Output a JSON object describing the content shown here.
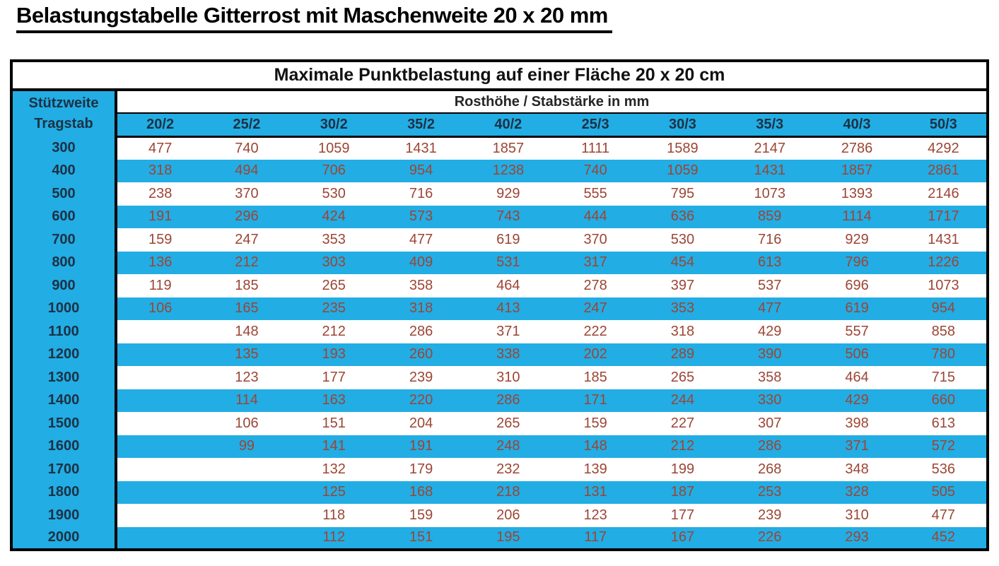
{
  "page": {
    "title": "Belastungstabelle Gitterrost mit Maschenweite 20 x 20 mm"
  },
  "table": {
    "main_header": "Maximale Punktbelastung auf einer Fläche 20 x 20 cm",
    "corner": {
      "line1": "Stützweite",
      "line2": "Tragstab"
    },
    "subheader": "Rosthöhe / Stabstärke in mm",
    "columns": [
      "20/2",
      "25/2",
      "30/2",
      "35/2",
      "40/2",
      "25/3",
      "30/3",
      "35/3",
      "40/3",
      "50/3"
    ],
    "rows": [
      {
        "label": "300",
        "values": [
          "477",
          "740",
          "1059",
          "1431",
          "1857",
          "1111",
          "1589",
          "2147",
          "2786",
          "4292"
        ]
      },
      {
        "label": "400",
        "values": [
          "318",
          "494",
          "706",
          "954",
          "1238",
          "740",
          "1059",
          "1431",
          "1857",
          "2861"
        ]
      },
      {
        "label": "500",
        "values": [
          "238",
          "370",
          "530",
          "716",
          "929",
          "555",
          "795",
          "1073",
          "1393",
          "2146"
        ]
      },
      {
        "label": "600",
        "values": [
          "191",
          "296",
          "424",
          "573",
          "743",
          "444",
          "636",
          "859",
          "1114",
          "1717"
        ]
      },
      {
        "label": "700",
        "values": [
          "159",
          "247",
          "353",
          "477",
          "619",
          "370",
          "530",
          "716",
          "929",
          "1431"
        ]
      },
      {
        "label": "800",
        "values": [
          "136",
          "212",
          "303",
          "409",
          "531",
          "317",
          "454",
          "613",
          "796",
          "1226"
        ]
      },
      {
        "label": "900",
        "values": [
          "119",
          "185",
          "265",
          "358",
          "464",
          "278",
          "397",
          "537",
          "696",
          "1073"
        ]
      },
      {
        "label": "1000",
        "values": [
          "106",
          "165",
          "235",
          "318",
          "413",
          "247",
          "353",
          "477",
          "619",
          "954"
        ]
      },
      {
        "label": "1100",
        "values": [
          "",
          "148",
          "212",
          "286",
          "371",
          "222",
          "318",
          "429",
          "557",
          "858"
        ]
      },
      {
        "label": "1200",
        "values": [
          "",
          "135",
          "193",
          "260",
          "338",
          "202",
          "289",
          "390",
          "506",
          "780"
        ]
      },
      {
        "label": "1300",
        "values": [
          "",
          "123",
          "177",
          "239",
          "310",
          "185",
          "265",
          "358",
          "464",
          "715"
        ]
      },
      {
        "label": "1400",
        "values": [
          "",
          "114",
          "163",
          "220",
          "286",
          "171",
          "244",
          "330",
          "429",
          "660"
        ]
      },
      {
        "label": "1500",
        "values": [
          "",
          "106",
          "151",
          "204",
          "265",
          "159",
          "227",
          "307",
          "398",
          "613"
        ]
      },
      {
        "label": "1600",
        "values": [
          "",
          "99",
          "141",
          "191",
          "248",
          "148",
          "212",
          "286",
          "371",
          "572"
        ]
      },
      {
        "label": "1700",
        "values": [
          "",
          "",
          "132",
          "179",
          "232",
          "139",
          "199",
          "268",
          "348",
          "536"
        ]
      },
      {
        "label": "1800",
        "values": [
          "",
          "",
          "125",
          "168",
          "218",
          "131",
          "187",
          "253",
          "328",
          "505"
        ]
      },
      {
        "label": "1900",
        "values": [
          "",
          "",
          "118",
          "159",
          "206",
          "123",
          "177",
          "239",
          "310",
          "477"
        ]
      },
      {
        "label": "2000",
        "values": [
          "",
          "",
          "112",
          "151",
          "195",
          "117",
          "167",
          "226",
          "293",
          "452"
        ]
      }
    ]
  },
  "colors": {
    "accent_cyan": "#22ade4",
    "label_navy": "#1c3144",
    "value_brown_red": "#9c4534",
    "border_black": "#000000"
  }
}
